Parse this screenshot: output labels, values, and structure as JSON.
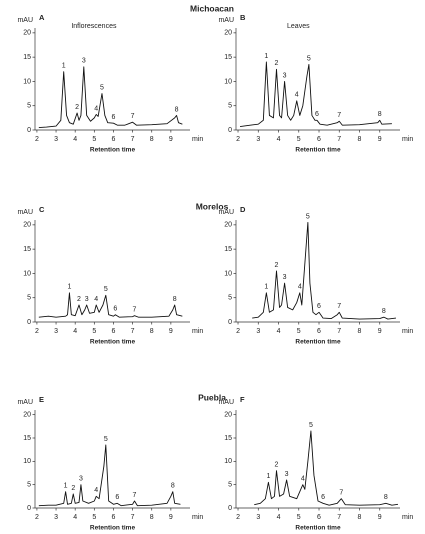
{
  "sections": [
    "Michoacan",
    "Morelos",
    "Puebla"
  ],
  "chart_data": [
    {
      "type": "line",
      "panel": "A",
      "subtitle": "Inflorescences",
      "y_label": "mAU",
      "x_label": "Retention time",
      "x_unit": "min",
      "xlim": [
        1.9,
        10
      ],
      "ylim": [
        0,
        21
      ],
      "xticks": [
        2,
        3,
        4,
        5,
        6,
        7,
        8,
        9
      ],
      "yticks": [
        0,
        5,
        10,
        15,
        20
      ],
      "color": "#111111",
      "x": [
        2.1,
        2.5,
        3.0,
        3.25,
        3.4,
        3.55,
        3.7,
        3.9,
        4.1,
        4.2,
        4.3,
        4.45,
        4.6,
        4.8,
        5.0,
        5.1,
        5.2,
        5.4,
        5.55,
        5.7,
        6.0,
        6.2,
        6.6,
        7.0,
        7.2,
        8.0,
        8.8,
        9.2,
        9.3,
        9.4,
        9.6
      ],
      "values": [
        0.5,
        0.6,
        0.8,
        2,
        12,
        3,
        1.5,
        1.2,
        3.5,
        2,
        3,
        13,
        3,
        1.8,
        2.5,
        3.2,
        2.8,
        7.5,
        3,
        1.5,
        1.4,
        1,
        1,
        1.6,
        1,
        1.1,
        1.3,
        2.5,
        3,
        1.5,
        1.2
      ],
      "peak_labels": [
        "1",
        "2",
        "3",
        "4",
        "5",
        "6",
        "7",
        "8"
      ],
      "peak_x": [
        3.4,
        4.1,
        4.45,
        5.1,
        5.4,
        6.0,
        7.0,
        9.3
      ],
      "peak_values": [
        12,
        3.5,
        13,
        3.2,
        7.5,
        1.4,
        1.6,
        3
      ]
    },
    {
      "type": "line",
      "panel": "B",
      "subtitle": "Leaves",
      "y_label": "mAU",
      "x_label": "Retention time",
      "x_unit": "min",
      "xlim": [
        1.9,
        10
      ],
      "ylim": [
        0,
        21
      ],
      "xticks": [
        2,
        3,
        4,
        5,
        6,
        7,
        8,
        9
      ],
      "yticks": [
        0,
        5,
        10,
        15,
        20
      ],
      "color": "#111111",
      "x": [
        2.1,
        2.6,
        3.0,
        3.25,
        3.4,
        3.55,
        3.75,
        3.9,
        4.05,
        4.15,
        4.3,
        4.45,
        4.6,
        4.75,
        4.9,
        5.05,
        5.2,
        5.4,
        5.5,
        5.65,
        5.8,
        5.9,
        6.05,
        6.4,
        6.9,
        7.0,
        7.15,
        8.0,
        8.9,
        9.0,
        9.1,
        9.6
      ],
      "values": [
        0.7,
        1,
        1.2,
        2,
        14,
        3,
        2.5,
        12.5,
        3,
        2.5,
        10,
        3,
        2,
        3,
        6,
        3,
        5,
        11,
        13.5,
        3,
        2,
        2,
        1.2,
        1,
        1.5,
        1.8,
        1,
        1.1,
        1.5,
        2,
        1.2,
        1.3
      ],
      "peak_labels": [
        "1",
        "2",
        "3",
        "4",
        "5",
        "6",
        "7",
        "8"
      ],
      "peak_x": [
        3.4,
        3.9,
        4.3,
        4.9,
        5.5,
        5.9,
        7.0,
        9.0
      ],
      "peak_values": [
        14,
        12.5,
        10,
        6,
        13.5,
        2,
        1.8,
        2
      ]
    },
    {
      "type": "line",
      "panel": "C",
      "y_label": "mAU",
      "x_label": "Retention time",
      "x_unit": "min",
      "xlim": [
        1.9,
        10
      ],
      "ylim": [
        0,
        21
      ],
      "xticks": [
        2,
        3,
        4,
        5,
        6,
        7,
        8,
        9
      ],
      "yticks": [
        0,
        5,
        10,
        15,
        20
      ],
      "color": "#111111",
      "x": [
        2.1,
        2.6,
        3.0,
        3.5,
        3.6,
        3.7,
        3.8,
        4.0,
        4.2,
        4.35,
        4.5,
        4.6,
        4.75,
        5.0,
        5.1,
        5.25,
        5.45,
        5.6,
        5.75,
        6.0,
        6.1,
        6.3,
        7.0,
        7.1,
        7.3,
        8.0,
        8.9,
        9.1,
        9.2,
        9.3,
        9.6
      ],
      "values": [
        1,
        1.2,
        1,
        1.2,
        1.5,
        6,
        1.5,
        1.3,
        3.5,
        1.5,
        2.5,
        3.5,
        1.8,
        2,
        3.5,
        2,
        3.5,
        5.5,
        1.5,
        1.2,
        1.5,
        1,
        1.1,
        1.3,
        1,
        1,
        1.2,
        2.5,
        3.5,
        1.5,
        1.2
      ],
      "peak_labels": [
        "1",
        "2",
        "3",
        "4",
        "5",
        "6",
        "7",
        "8"
      ],
      "peak_x": [
        3.7,
        4.2,
        4.6,
        5.1,
        5.6,
        6.1,
        7.1,
        9.2
      ],
      "peak_values": [
        6,
        3.5,
        3.5,
        3.5,
        5.5,
        1.5,
        1.3,
        3.5
      ]
    },
    {
      "type": "line",
      "panel": "D",
      "y_label": "mAU",
      "x_label": "Retention time",
      "x_unit": "min",
      "xlim": [
        1.9,
        10
      ],
      "ylim": [
        0,
        21
      ],
      "xticks": [
        2,
        3,
        4,
        5,
        6,
        7,
        8,
        9
      ],
      "yticks": [
        0,
        5,
        10,
        15,
        20
      ],
      "color": "#111111",
      "x": [
        2.7,
        3.0,
        3.25,
        3.4,
        3.55,
        3.75,
        3.9,
        4.05,
        4.15,
        4.3,
        4.45,
        4.7,
        4.9,
        5.05,
        5.15,
        5.3,
        5.45,
        5.55,
        5.7,
        5.85,
        6.0,
        6.2,
        6.6,
        6.9,
        7.0,
        7.15,
        8.0,
        9.0,
        9.2,
        9.4,
        9.8
      ],
      "values": [
        0.8,
        1,
        2,
        6,
        2,
        2.5,
        10.5,
        3,
        3.5,
        8,
        3,
        2.5,
        4,
        6,
        3.5,
        12,
        20.5,
        8,
        2,
        1.5,
        2,
        0.8,
        0.7,
        1.5,
        2,
        0.8,
        0.6,
        0.7,
        1,
        0.6,
        0.8
      ],
      "peak_labels": [
        "1",
        "2",
        "3",
        "4",
        "5",
        "6",
        "7",
        "8"
      ],
      "peak_x": [
        3.4,
        3.9,
        4.3,
        5.05,
        5.45,
        6.0,
        7.0,
        9.2
      ],
      "peak_values": [
        6,
        10.5,
        8,
        6,
        20.5,
        2,
        2,
        1
      ]
    },
    {
      "type": "line",
      "panel": "E",
      "y_label": "mAU",
      "x_label": "Retention time",
      "x_unit": "min",
      "xlim": [
        1.9,
        10
      ],
      "ylim": [
        0,
        21
      ],
      "xticks": [
        2,
        3,
        4,
        5,
        6,
        7,
        8,
        9
      ],
      "yticks": [
        0,
        5,
        10,
        15,
        20
      ],
      "color": "#111111",
      "x": [
        2.1,
        2.6,
        3.0,
        3.4,
        3.5,
        3.6,
        3.8,
        3.9,
        4.0,
        4.2,
        4.3,
        4.4,
        4.7,
        5.0,
        5.1,
        5.25,
        5.5,
        5.6,
        5.75,
        6.0,
        6.2,
        6.4,
        7.0,
        7.1,
        7.25,
        8.0,
        8.8,
        9.0,
        9.1,
        9.2,
        9.5
      ],
      "values": [
        0.5,
        0.6,
        0.6,
        1,
        3.5,
        0.8,
        1,
        3,
        1,
        1.2,
        5,
        1.5,
        1,
        1.5,
        2.5,
        2,
        9,
        13.5,
        1.5,
        0.8,
        1,
        0.5,
        0.8,
        1.5,
        0.5,
        0.6,
        1,
        2.5,
        3.5,
        1,
        0.8
      ],
      "peak_labels": [
        "1",
        "2",
        "3",
        "4",
        "5",
        "6",
        "7",
        "8"
      ],
      "peak_x": [
        3.5,
        3.9,
        4.3,
        5.1,
        5.6,
        6.2,
        7.1,
        9.1
      ],
      "peak_values": [
        3.5,
        3,
        5,
        2.5,
        13.5,
        1,
        1.5,
        3.5
      ]
    },
    {
      "type": "line",
      "panel": "F",
      "y_label": "mAU",
      "x_label": "Retention time",
      "x_unit": "min",
      "xlim": [
        1.9,
        10
      ],
      "ylim": [
        0,
        21
      ],
      "xticks": [
        2,
        3,
        4,
        5,
        6,
        7,
        8,
        9
      ],
      "yticks": [
        0,
        5,
        10,
        15,
        20
      ],
      "color": "#111111",
      "x": [
        2.8,
        3.1,
        3.35,
        3.5,
        3.65,
        3.8,
        3.9,
        4.05,
        4.25,
        4.4,
        4.55,
        4.9,
        5.1,
        5.2,
        5.3,
        5.45,
        5.6,
        5.75,
        5.95,
        6.2,
        6.5,
        6.9,
        7.1,
        7.3,
        8.0,
        9.0,
        9.3,
        9.6,
        9.9
      ],
      "values": [
        0.7,
        1,
        2,
        5.5,
        2,
        2.5,
        8,
        2.5,
        3,
        6,
        2.5,
        2,
        4,
        5,
        4,
        10,
        16.5,
        7,
        1.5,
        1,
        0.6,
        1,
        2,
        0.7,
        0.6,
        0.7,
        1,
        0.6,
        0.8
      ],
      "peak_labels": [
        "1",
        "2",
        "3",
        "4",
        "5",
        "6",
        "7",
        "8"
      ],
      "peak_x": [
        3.5,
        3.9,
        4.4,
        5.2,
        5.6,
        6.2,
        7.1,
        9.3
      ],
      "peak_values": [
        5.5,
        8,
        6,
        5,
        16.5,
        1,
        2,
        1
      ]
    }
  ]
}
